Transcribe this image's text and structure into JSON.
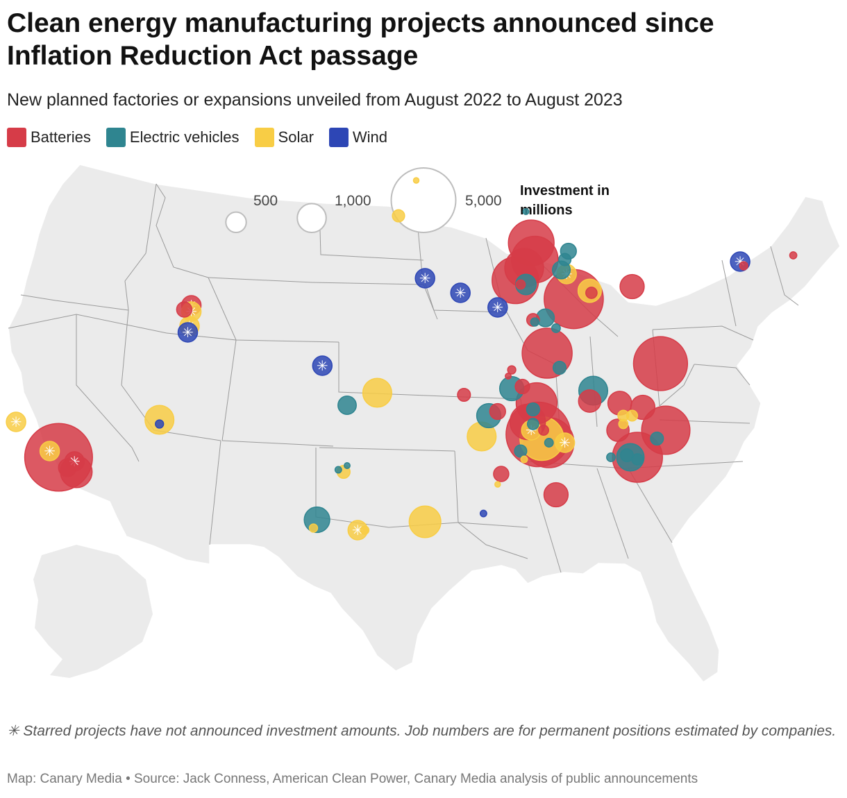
{
  "title": "Clean energy manufacturing projects announced since Inflation Reduction Act passage",
  "subtitle": "New planned factories or expansions unveiled from August 2022 to August 2023",
  "legend": [
    {
      "label": "Batteries",
      "color": "#d63c48"
    },
    {
      "label": "Electric vehicles",
      "color": "#2f8590"
    },
    {
      "label": "Solar",
      "color": "#f8cd45"
    },
    {
      "label": "Wind",
      "color": "#2d46b5"
    }
  ],
  "size_legend": {
    "title_line1": "Investment in",
    "title_line2": "millions",
    "items": [
      {
        "label": "500",
        "value": 500
      },
      {
        "label": "1,000",
        "value": 1000
      },
      {
        "label": "5,000",
        "value": 5000
      }
    ]
  },
  "note": "✳ Starred projects have not announced investment amounts. Job numbers are for permanent positions estimated by companies.",
  "source": "Map: Canary Media • Source: Jack Conness, American Clean Power, Canary Media analysis of public announcements",
  "colors": {
    "land": "#ebebeb",
    "border": "#9a9a9a"
  },
  "projects": [
    {
      "type": "Solar",
      "lon": -118.2,
      "lat": 47.6,
      "starred": true
    },
    {
      "type": "Electric vehicles",
      "lon": -119.8,
      "lat": 39.5,
      "value": 3600
    },
    {
      "type": "Batteries",
      "lon": -119.7,
      "lat": 39.4,
      "value": 1000
    },
    {
      "type": "Batteries",
      "lon": -122.8,
      "lat": 38.6,
      "starred": true
    },
    {
      "type": "Solar",
      "lon": -114.7,
      "lat": 35.0,
      "starred": true
    },
    {
      "type": "Batteries",
      "lon": -112.3,
      "lat": 33.3,
      "value": 5500
    },
    {
      "type": "Solar",
      "lon": -112.8,
      "lat": 33.6,
      "starred": true
    },
    {
      "type": "Batteries",
      "lon": -111.4,
      "lat": 33.1,
      "starred": true
    },
    {
      "type": "Batteries",
      "lon": -111.3,
      "lat": 32.6,
      "value": 1200
    },
    {
      "type": "Batteries",
      "lon": -111.8,
      "lat": 32.8,
      "value": 380
    },
    {
      "type": "Solar",
      "lon": -106.6,
      "lat": 35.1,
      "value": 1000
    },
    {
      "type": "Wind",
      "lon": -106.6,
      "lat": 34.9,
      "value": 80
    },
    {
      "type": "Batteries",
      "lon": -104.8,
      "lat": 40.6,
      "starred": true
    },
    {
      "type": "Batteries",
      "lon": -105.2,
      "lat": 40.4,
      "value": 280
    },
    {
      "type": "Solar",
      "lon": -104.8,
      "lat": 40.3,
      "starred": true
    },
    {
      "type": "Solar",
      "lon": -104.9,
      "lat": 39.6,
      "starred": true
    },
    {
      "type": "Wind",
      "lon": -105.0,
      "lat": 39.3,
      "starred": true
    },
    {
      "type": "Wind",
      "lon": -97.4,
      "lat": 37.7,
      "starred": true
    },
    {
      "type": "Solar",
      "lon": -94.3,
      "lat": 36.4,
      "value": 1000
    },
    {
      "type": "Electric vehicles",
      "lon": -96.0,
      "lat": 35.8,
      "value": 400
    },
    {
      "type": "Solar",
      "lon": -96.2,
      "lat": 32.6,
      "value": 200
    },
    {
      "type": "Electric vehicles",
      "lon": -96.0,
      "lat": 32.9,
      "value": 40
    },
    {
      "type": "Electric vehicles",
      "lon": -96.5,
      "lat": 32.7,
      "value": 50
    },
    {
      "type": "Electric vehicles",
      "lon": -97.7,
      "lat": 30.3,
      "value": 780
    },
    {
      "type": "Solar",
      "lon": -97.9,
      "lat": 29.9,
      "value": 80
    },
    {
      "type": "Solar",
      "lon": -95.4,
      "lat": 29.8,
      "starred": true
    },
    {
      "type": "Solar",
      "lon": -95.0,
      "lat": 29.8,
      "value": 80
    },
    {
      "type": "Solar",
      "lon": -91.6,
      "lat": 30.2,
      "value": 1200
    },
    {
      "type": "Solar",
      "lon": -93.1,
      "lat": 44.9,
      "value": 180
    },
    {
      "type": "Solar",
      "lon": -92.1,
      "lat": 46.6,
      "value": 25
    },
    {
      "type": "Wind",
      "lon": -91.6,
      "lat": 41.9,
      "starred": true
    },
    {
      "type": "Wind",
      "lon": -89.6,
      "lat": 41.2,
      "starred": true
    },
    {
      "type": "Wind",
      "lon": -87.5,
      "lat": 40.5,
      "starred": true
    },
    {
      "type": "Electric vehicles",
      "lon": -85.9,
      "lat": 45.1,
      "value": 40
    },
    {
      "type": "Batteries",
      "lon": -85.6,
      "lat": 43.6,
      "value": 2500
    },
    {
      "type": "Batteries",
      "lon": -85.4,
      "lat": 42.8,
      "value": 2600
    },
    {
      "type": "Batteries",
      "lon": -86.0,
      "lat": 42.4,
      "value": 1800
    },
    {
      "type": "Batteries",
      "lon": -86.5,
      "lat": 41.8,
      "value": 2600
    },
    {
      "type": "Electric vehicles",
      "lon": -85.9,
      "lat": 41.6,
      "value": 500
    },
    {
      "type": "Batteries",
      "lon": -86.2,
      "lat": 41.6,
      "value": 100
    },
    {
      "type": "Electric vehicles",
      "lon": -83.5,
      "lat": 43.2,
      "value": 300
    },
    {
      "type": "Electric vehicles",
      "lon": -83.7,
      "lat": 42.8,
      "value": 180
    },
    {
      "type": "Electric vehicles",
      "lon": -83.9,
      "lat": 42.3,
      "value": 380
    },
    {
      "type": "Solar",
      "lon": -83.6,
      "lat": 42.1,
      "starred": true
    },
    {
      "type": "Batteries",
      "lon": -83.2,
      "lat": 40.9,
      "value": 4200
    },
    {
      "type": "Solar",
      "lon": -82.3,
      "lat": 41.3,
      "value": 650
    },
    {
      "type": "Batteries",
      "lon": -82.2,
      "lat": 41.2,
      "value": 150
    },
    {
      "type": "Batteries",
      "lon": -79.9,
      "lat": 41.5,
      "value": 700
    },
    {
      "type": "Electric vehicles",
      "lon": -84.8,
      "lat": 40.0,
      "value": 380
    },
    {
      "type": "Batteries",
      "lon": -85.5,
      "lat": 39.9,
      "value": 190
    },
    {
      "type": "Electric vehicles",
      "lon": -85.4,
      "lat": 39.8,
      "value": 80
    },
    {
      "type": "Electric vehicles",
      "lon": -84.2,
      "lat": 39.5,
      "value": 90
    },
    {
      "type": "Batteries",
      "lon": -84.7,
      "lat": 38.3,
      "value": 3000
    },
    {
      "type": "Electric vehicles",
      "lon": -84.0,
      "lat": 37.6,
      "value": 200
    },
    {
      "type": "Batteries",
      "lon": -86.7,
      "lat": 37.5,
      "value": 80
    },
    {
      "type": "Batteries",
      "lon": -86.9,
      "lat": 37.2,
      "value": 40
    },
    {
      "type": "Batteries",
      "lon": -89.4,
      "lat": 36.3,
      "value": 200
    },
    {
      "type": "Electric vehicles",
      "lon": -86.7,
      "lat": 36.6,
      "value": 700
    },
    {
      "type": "Batteries",
      "lon": -86.1,
      "lat": 36.7,
      "value": 250
    },
    {
      "type": "Batteries",
      "lon": -85.3,
      "lat": 35.9,
      "value": 2000
    },
    {
      "type": "Electric vehicles",
      "lon": -82.1,
      "lat": 36.5,
      "value": 1000
    },
    {
      "type": "Batteries",
      "lon": -82.3,
      "lat": 36.0,
      "value": 600
    },
    {
      "type": "Batteries",
      "lon": -78.3,
      "lat": 37.8,
      "value": 3500
    },
    {
      "type": "Batteries",
      "lon": -80.6,
      "lat": 35.9,
      "value": 680
    },
    {
      "type": "Batteries",
      "lon": -79.3,
      "lat": 35.7,
      "value": 700
    },
    {
      "type": "Solar",
      "lon": -80.4,
      "lat": 35.3,
      "value": 140
    },
    {
      "type": "Solar",
      "lon": -79.9,
      "lat": 35.3,
      "value": 140
    },
    {
      "type": "Batteries",
      "lon": -78.0,
      "lat": 34.6,
      "value": 2800
    },
    {
      "type": "Electric vehicles",
      "lon": -78.5,
      "lat": 34.2,
      "value": 200
    },
    {
      "type": "Batteries",
      "lon": -80.7,
      "lat": 34.6,
      "value": 600
    },
    {
      "type": "Solar",
      "lon": -80.4,
      "lat": 34.9,
      "value": 100
    },
    {
      "type": "Batteries",
      "lon": -79.6,
      "lat": 33.3,
      "value": 3000
    },
    {
      "type": "Electric vehicles",
      "lon": -80.0,
      "lat": 33.3,
      "value": 900
    },
    {
      "type": "Electric vehicles",
      "lon": -80.2,
      "lat": 33.4,
      "value": 200
    },
    {
      "type": "Electric vehicles",
      "lon": -79.6,
      "lat": 33.2,
      "value": 150
    },
    {
      "type": "Electric vehicles",
      "lon": -81.1,
      "lat": 33.3,
      "value": 90
    },
    {
      "type": "Batteries",
      "lon": -85.2,
      "lat": 34.4,
      "value": 5000
    },
    {
      "type": "Batteries",
      "lon": -84.6,
      "lat": 34.0,
      "value": 3000
    },
    {
      "type": "Solar",
      "lon": -85.0,
      "lat": 34.2,
      "value": 2300
    },
    {
      "type": "Solar",
      "lon": -85.6,
      "lat": 34.6,
      "starred": true
    },
    {
      "type": "Solar",
      "lon": -83.7,
      "lat": 34.0,
      "starred": true
    },
    {
      "type": "Solar",
      "lon": -88.4,
      "lat": 34.3,
      "value": 1000
    },
    {
      "type": "Electric vehicles",
      "lon": -88.0,
      "lat": 35.3,
      "value": 700
    },
    {
      "type": "Batteries",
      "lon": -87.5,
      "lat": 35.5,
      "value": 300
    },
    {
      "type": "Electric vehicles",
      "lon": -85.5,
      "lat": 35.6,
      "value": 200
    },
    {
      "type": "Batteries",
      "lon": -85.8,
      "lat": 35.0,
      "value": 1500
    },
    {
      "type": "Electric vehicles",
      "lon": -85.5,
      "lat": 34.9,
      "value": 150
    },
    {
      "type": "Electric vehicles",
      "lon": -84.6,
      "lat": 34.0,
      "value": 90
    },
    {
      "type": "Electric vehicles",
      "lon": -86.2,
      "lat": 33.6,
      "value": 180
    },
    {
      "type": "Solar",
      "lon": -86.0,
      "lat": 33.2,
      "value": 50
    },
    {
      "type": "Batteries",
      "lon": -87.3,
      "lat": 32.5,
      "value": 280
    },
    {
      "type": "Solar",
      "lon": -87.5,
      "lat": 32.0,
      "value": 20
    },
    {
      "type": "Batteries",
      "lon": -84.2,
      "lat": 31.5,
      "value": 700
    },
    {
      "type": "Batteries",
      "lon": -84.9,
      "lat": 34.6,
      "value": 120
    },
    {
      "type": "Wind",
      "lon": -88.3,
      "lat": 30.6,
      "value": 50
    },
    {
      "type": "Wind",
      "lon": -73.8,
      "lat": 42.7,
      "starred": true
    },
    {
      "type": "Batteries",
      "lon": -73.6,
      "lat": 42.5,
      "value": 80
    },
    {
      "type": "Batteries",
      "lon": -70.8,
      "lat": 43.0,
      "value": 60
    }
  ]
}
